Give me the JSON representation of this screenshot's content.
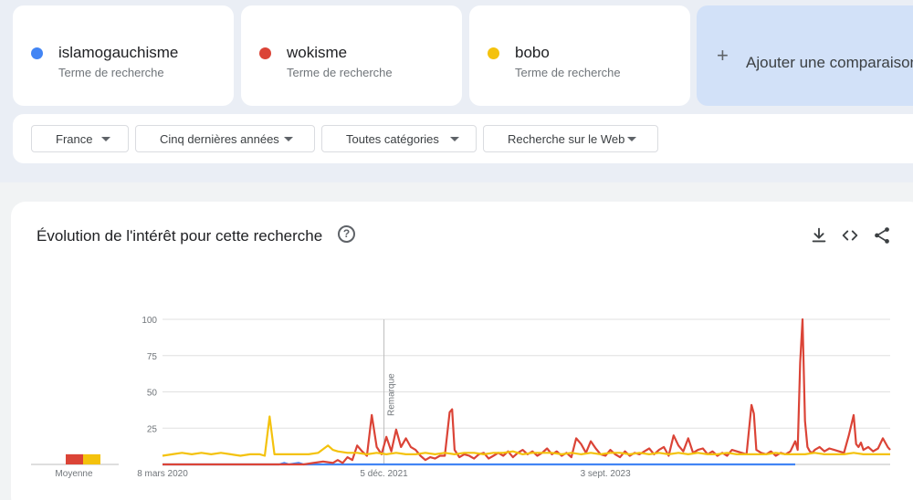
{
  "terms": [
    {
      "name": "islamogauchisme",
      "subtitle": "Terme de recherche",
      "color": "#4285f4"
    },
    {
      "name": "wokisme",
      "subtitle": "Terme de recherche",
      "color": "#db4437"
    },
    {
      "name": "bobo",
      "subtitle": "Terme de recherche",
      "color": "#f4c20d"
    }
  ],
  "add_comparison": {
    "label": "Ajouter une comparaison",
    "icon": "plus-icon"
  },
  "filters": [
    {
      "label": "France"
    },
    {
      "label": "Cinq dernières années"
    },
    {
      "label": "Toutes catégories"
    },
    {
      "label": "Recherche sur le Web"
    }
  ],
  "panel": {
    "title": "Évolution de l'intérêt pour cette recherche",
    "help_icon": "help-icon",
    "actions": [
      "download-icon",
      "embed-icon",
      "share-icon"
    ]
  },
  "chart_data": {
    "type": "line",
    "ylim": [
      0,
      100
    ],
    "y_ticks": [
      {
        "label": "100",
        "value": 100
      },
      {
        "label": "75",
        "value": 75
      },
      {
        "label": "50",
        "value": 50
      },
      {
        "label": "25",
        "value": 25
      }
    ],
    "x_ticks": [
      {
        "label": "8 mars 2020",
        "index": 0
      },
      {
        "label": "5 déc. 2021",
        "index": 91
      },
      {
        "label": "3 sept. 2023",
        "index": 182
      }
    ],
    "annotation": {
      "label": "Remarque",
      "index": 91
    },
    "average_label": "Moyenne",
    "averages": [
      {
        "series": "islamogauchisme",
        "value": 0
      },
      {
        "series": "wokisme",
        "value": 7
      },
      {
        "series": "bobo",
        "value": 7
      }
    ],
    "series": [
      {
        "name": "islamogauchisme",
        "color": "#4285f4",
        "baseline": 0,
        "points": [
          [
            0,
            0
          ],
          [
            48,
            0
          ],
          [
            50,
            1
          ],
          [
            52,
            0
          ],
          [
            56,
            1
          ],
          [
            58,
            0
          ],
          [
            260,
            0
          ]
        ]
      },
      {
        "name": "wokisme",
        "color": "#db4437",
        "baseline": 0,
        "points": [
          [
            0,
            0
          ],
          [
            44,
            0
          ],
          [
            48,
            0
          ],
          [
            52,
            0
          ],
          [
            58,
            0
          ],
          [
            62,
            1
          ],
          [
            66,
            2
          ],
          [
            70,
            1
          ],
          [
            72,
            3
          ],
          [
            74,
            1
          ],
          [
            76,
            5
          ],
          [
            78,
            3
          ],
          [
            80,
            13
          ],
          [
            82,
            9
          ],
          [
            84,
            6
          ],
          [
            86,
            34
          ],
          [
            88,
            12
          ],
          [
            90,
            7
          ],
          [
            92,
            19
          ],
          [
            94,
            9
          ],
          [
            96,
            24
          ],
          [
            98,
            12
          ],
          [
            100,
            18
          ],
          [
            102,
            12
          ],
          [
            104,
            10
          ],
          [
            106,
            6
          ],
          [
            108,
            3
          ],
          [
            110,
            5
          ],
          [
            112,
            4
          ],
          [
            114,
            6
          ],
          [
            116,
            6
          ],
          [
            118,
            36
          ],
          [
            119,
            38
          ],
          [
            120,
            10
          ],
          [
            122,
            5
          ],
          [
            124,
            7
          ],
          [
            126,
            6
          ],
          [
            128,
            4
          ],
          [
            130,
            7
          ],
          [
            132,
            8
          ],
          [
            134,
            4
          ],
          [
            136,
            6
          ],
          [
            138,
            8
          ],
          [
            140,
            6
          ],
          [
            142,
            9
          ],
          [
            144,
            5
          ],
          [
            146,
            8
          ],
          [
            148,
            10
          ],
          [
            150,
            7
          ],
          [
            152,
            9
          ],
          [
            154,
            6
          ],
          [
            156,
            8
          ],
          [
            158,
            11
          ],
          [
            160,
            7
          ],
          [
            162,
            9
          ],
          [
            164,
            6
          ],
          [
            166,
            8
          ],
          [
            168,
            5
          ],
          [
            170,
            18
          ],
          [
            172,
            14
          ],
          [
            174,
            8
          ],
          [
            176,
            16
          ],
          [
            178,
            11
          ],
          [
            180,
            7
          ],
          [
            182,
            6
          ],
          [
            184,
            10
          ],
          [
            186,
            7
          ],
          [
            188,
            5
          ],
          [
            190,
            9
          ],
          [
            192,
            6
          ],
          [
            194,
            8
          ],
          [
            196,
            7
          ],
          [
            198,
            9
          ],
          [
            200,
            11
          ],
          [
            202,
            7
          ],
          [
            204,
            10
          ],
          [
            206,
            12
          ],
          [
            208,
            6
          ],
          [
            210,
            20
          ],
          [
            212,
            13
          ],
          [
            214,
            9
          ],
          [
            216,
            18
          ],
          [
            218,
            8
          ],
          [
            220,
            10
          ],
          [
            222,
            11
          ],
          [
            224,
            7
          ],
          [
            226,
            9
          ],
          [
            228,
            6
          ],
          [
            230,
            8
          ],
          [
            232,
            6
          ],
          [
            234,
            10
          ],
          [
            236,
            9
          ],
          [
            238,
            8
          ],
          [
            240,
            7
          ],
          [
            242,
            41
          ],
          [
            243,
            35
          ],
          [
            244,
            10
          ],
          [
            246,
            8
          ],
          [
            248,
            7
          ],
          [
            250,
            9
          ],
          [
            252,
            6
          ],
          [
            254,
            8
          ],
          [
            256,
            7
          ],
          [
            258,
            9
          ],
          [
            260,
            16
          ],
          [
            261,
            10
          ],
          [
            262,
            70
          ],
          [
            263,
            100
          ],
          [
            264,
            30
          ],
          [
            265,
            12
          ],
          [
            266,
            9
          ],
          [
            267,
            8
          ],
          [
            268,
            10
          ],
          [
            270,
            12
          ],
          [
            272,
            9
          ],
          [
            274,
            11
          ],
          [
            276,
            10
          ],
          [
            278,
            9
          ],
          [
            280,
            8
          ],
          [
            282,
            20
          ],
          [
            284,
            34
          ],
          [
            285,
            14
          ],
          [
            286,
            12
          ],
          [
            287,
            15
          ],
          [
            288,
            10
          ],
          [
            290,
            12
          ],
          [
            292,
            9
          ],
          [
            294,
            11
          ],
          [
            296,
            18
          ],
          [
            298,
            12
          ],
          [
            299,
            10
          ]
        ]
      },
      {
        "name": "bobo",
        "color": "#f4c20d",
        "baseline": 0,
        "points": [
          [
            0,
            6
          ],
          [
            4,
            7
          ],
          [
            8,
            8
          ],
          [
            12,
            7
          ],
          [
            16,
            8
          ],
          [
            20,
            7
          ],
          [
            24,
            8
          ],
          [
            28,
            7
          ],
          [
            32,
            6
          ],
          [
            36,
            7
          ],
          [
            40,
            7
          ],
          [
            42,
            6
          ],
          [
            44,
            33
          ],
          [
            46,
            7
          ],
          [
            48,
            7
          ],
          [
            52,
            7
          ],
          [
            56,
            7
          ],
          [
            60,
            7
          ],
          [
            64,
            8
          ],
          [
            68,
            13
          ],
          [
            70,
            10
          ],
          [
            72,
            9
          ],
          [
            76,
            8
          ],
          [
            80,
            8
          ],
          [
            84,
            7
          ],
          [
            88,
            8
          ],
          [
            92,
            7
          ],
          [
            96,
            8
          ],
          [
            100,
            7
          ],
          [
            104,
            7
          ],
          [
            108,
            8
          ],
          [
            112,
            7
          ],
          [
            116,
            8
          ],
          [
            120,
            7
          ],
          [
            124,
            8
          ],
          [
            128,
            8
          ],
          [
            132,
            7
          ],
          [
            136,
            8
          ],
          [
            140,
            8
          ],
          [
            144,
            9
          ],
          [
            148,
            7
          ],
          [
            152,
            8
          ],
          [
            156,
            8
          ],
          [
            160,
            8
          ],
          [
            164,
            7
          ],
          [
            168,
            8
          ],
          [
            172,
            7
          ],
          [
            176,
            8
          ],
          [
            180,
            7
          ],
          [
            184,
            8
          ],
          [
            188,
            8
          ],
          [
            192,
            7
          ],
          [
            196,
            8
          ],
          [
            200,
            7
          ],
          [
            204,
            8
          ],
          [
            208,
            7
          ],
          [
            212,
            8
          ],
          [
            216,
            7
          ],
          [
            220,
            8
          ],
          [
            224,
            7
          ],
          [
            228,
            7
          ],
          [
            232,
            8
          ],
          [
            236,
            7
          ],
          [
            240,
            7
          ],
          [
            244,
            7
          ],
          [
            248,
            7
          ],
          [
            252,
            8
          ],
          [
            256,
            7
          ],
          [
            260,
            7
          ],
          [
            264,
            7
          ],
          [
            268,
            8
          ],
          [
            272,
            7
          ],
          [
            276,
            7
          ],
          [
            280,
            7
          ],
          [
            284,
            8
          ],
          [
            288,
            7
          ],
          [
            292,
            7
          ],
          [
            296,
            7
          ],
          [
            299,
            7
          ]
        ]
      }
    ]
  }
}
